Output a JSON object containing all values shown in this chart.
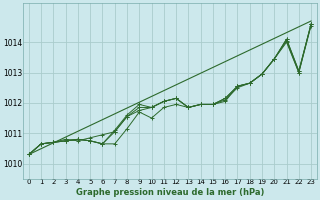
{
  "title": "Graphe pression niveau de la mer (hPa)",
  "bg_color": "#cce8ec",
  "grid_color": "#aacccc",
  "line_color": "#2d6a2d",
  "marker_color": "#2d6a2d",
  "xlim": [
    -0.5,
    23.5
  ],
  "ylim": [
    1009.5,
    1015.3
  ],
  "yticks": [
    1010,
    1011,
    1012,
    1013,
    1014
  ],
  "ytick_labels": [
    "1010",
    "1011",
    "1012",
    "1013",
    "1014"
  ],
  "xtick_labels": [
    "0",
    "1",
    "2",
    "3",
    "4",
    "5",
    "6",
    "7",
    "8",
    "9",
    "10",
    "11",
    "12",
    "13",
    "14",
    "15",
    "16",
    "17",
    "18",
    "19",
    "20",
    "21",
    "22",
    "23"
  ],
  "series": [
    [
      1010.3,
      1010.65,
      1010.7,
      1010.75,
      1010.8,
      1010.75,
      1010.65,
      1010.65,
      1011.15,
      1011.7,
      1011.5,
      1011.85,
      1011.95,
      1011.85,
      1011.95,
      1011.95,
      1012.05,
      1012.55,
      1012.65,
      1012.95,
      1013.45,
      1014.0,
      1013.0,
      1014.55
    ],
    [
      1010.3,
      1010.65,
      1010.7,
      1010.75,
      1010.8,
      1010.75,
      1010.65,
      1011.05,
      1011.55,
      1011.85,
      1011.85,
      1012.05,
      1012.15,
      1011.85,
      1011.95,
      1011.95,
      1012.15,
      1012.55,
      1012.65,
      1012.95,
      1013.45,
      1014.1,
      1013.05,
      1014.6
    ],
    [
      1010.3,
      1010.65,
      1010.7,
      1010.8,
      1010.75,
      1010.85,
      1010.95,
      1011.05,
      1011.55,
      1011.75,
      1011.85,
      1012.05,
      1012.15,
      1011.85,
      1011.95,
      1011.95,
      1012.1,
      1012.5,
      1012.65,
      1012.95,
      1013.45,
      1014.05,
      1013.0,
      1014.6
    ],
    [
      1010.3,
      1010.65,
      1010.7,
      1010.75,
      1010.8,
      1010.75,
      1010.65,
      1011.1,
      1011.6,
      1011.95,
      1011.85,
      1012.05,
      1012.15,
      1011.85,
      1011.95,
      1011.95,
      1012.15,
      1012.55,
      1012.65,
      1012.95,
      1013.45,
      1014.1,
      1013.05,
      1014.6
    ]
  ],
  "has_markers": [
    true,
    true,
    true,
    true
  ]
}
